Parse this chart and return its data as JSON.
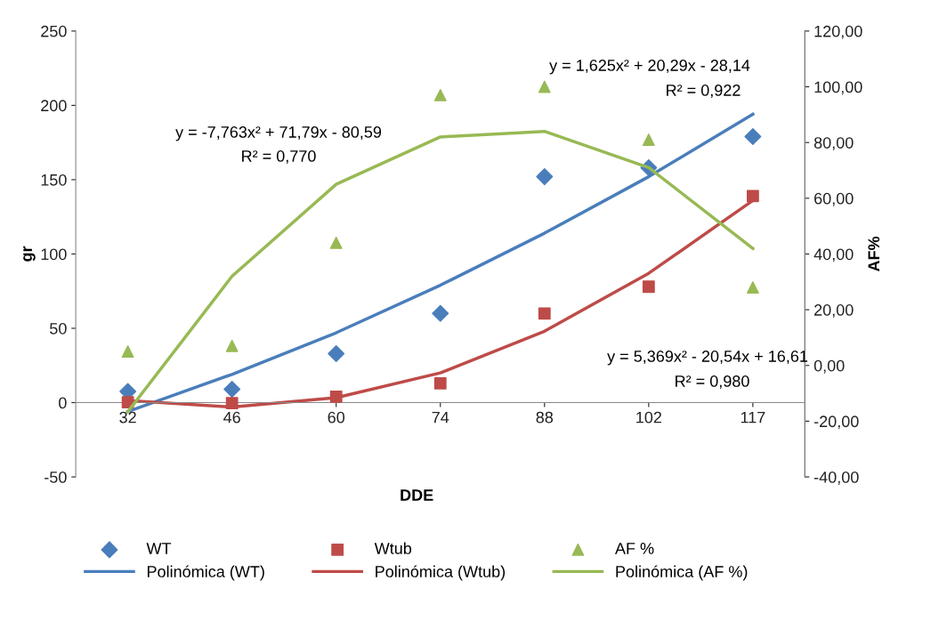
{
  "chart_data": {
    "type": "scatter",
    "categories": [
      "32",
      "46",
      "60",
      "74",
      "88",
      "102",
      "117"
    ],
    "xlabel": "DDE",
    "ylabel": "gr",
    "y2label": "AF%",
    "ylim": [
      -50,
      250
    ],
    "yticks": [
      -50,
      0,
      50,
      100,
      150,
      200,
      250
    ],
    "y2lim": [
      -40,
      120
    ],
    "y2ticks": [
      {
        "value": -40,
        "label": "-40,00"
      },
      {
        "value": -20,
        "label": "-20,00"
      },
      {
        "value": 0,
        "label": "0,00"
      },
      {
        "value": 20,
        "label": "20,00"
      },
      {
        "value": 40,
        "label": "40,00"
      },
      {
        "value": 60,
        "label": "60,00"
      },
      {
        "value": 80,
        "label": "80,00"
      },
      {
        "value": 100,
        "label": "100,00"
      },
      {
        "value": 120,
        "label": "120,00"
      }
    ],
    "legend": "bottom",
    "annotations": [
      "y = 1,625x² + 20,29x - 28,14",
      "R² = 0,922",
      "y = -7,763x² + 71,79x - 80,59",
      "R² = 0,770",
      "y = 5,369x² - 20,54x + 16,61",
      "R² = 0,980"
    ],
    "series": [
      {
        "name": "WT",
        "marker": "diamond",
        "color": "#4a7ebb",
        "values": [
          7.5,
          9,
          33,
          60,
          152,
          158,
          179
        ]
      },
      {
        "name": "Wtub",
        "marker": "square",
        "color": "#be4b48",
        "values": [
          0.3,
          -0.3,
          4,
          13,
          60,
          78,
          139
        ]
      },
      {
        "name": "AF %",
        "marker": "triangle",
        "axis": "y2",
        "color": "#98b954",
        "values": [
          5,
          7,
          44,
          97,
          100,
          81,
          28
        ]
      },
      {
        "name": "Polinómica (WT)",
        "type": "line",
        "marker": "none",
        "color": "#4a7ebb",
        "values": [
          -6,
          19,
          47,
          79,
          114,
          152,
          194
        ]
      },
      {
        "name": "Polinómica (Wtub)",
        "type": "line",
        "marker": "none",
        "color": "#be4b48",
        "values": [
          1.4,
          -3,
          3.3,
          20,
          48,
          87,
          136
        ]
      },
      {
        "name": "Polinómica (AF %)",
        "type": "line",
        "marker": "none",
        "axis": "y2",
        "color": "#98b954",
        "values": [
          -16.6,
          32,
          65,
          82,
          84,
          71,
          42
        ]
      }
    ]
  }
}
